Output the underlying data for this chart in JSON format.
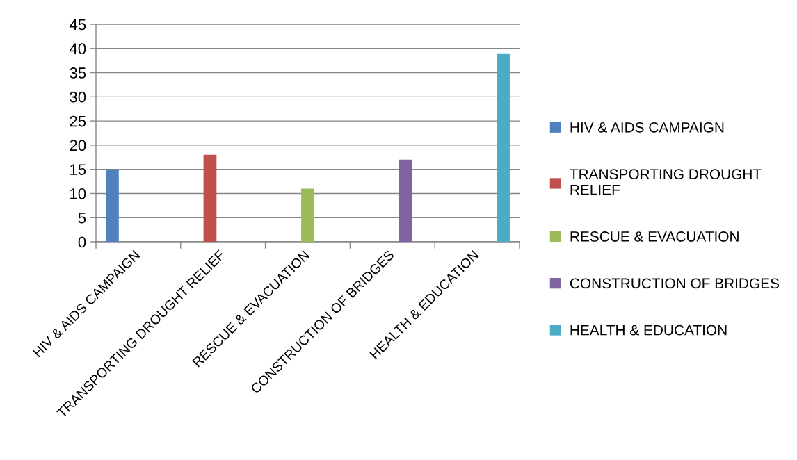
{
  "chart_data": {
    "type": "bar",
    "categories": [
      "HIV & AIDS CAMPAIGN",
      "TRANSPORTING DROUGHT RELIEF",
      "RESCUE & EVACUATION",
      "CONSTRUCTION OF BRIDGES",
      "HEALTH & EDUCATION"
    ],
    "series": [
      {
        "name": "HIV & AIDS CAMPAIGN",
        "color": "#4f81bd",
        "values": [
          15,
          null,
          null,
          null,
          null
        ]
      },
      {
        "name": "TRANSPORTING DROUGHT\nRELIEF",
        "color": "#c0504d",
        "values": [
          null,
          18,
          null,
          null,
          null
        ]
      },
      {
        "name": "RESCUE & EVACUATION",
        "color": "#9bbb59",
        "values": [
          null,
          null,
          11,
          null,
          null
        ]
      },
      {
        "name": "CONSTRUCTION OF BRIDGES",
        "color": "#8064a2",
        "values": [
          null,
          null,
          null,
          17,
          null
        ]
      },
      {
        "name": "HEALTH & EDUCATION",
        "color": "#4bacc6",
        "values": [
          null,
          null,
          null,
          null,
          39
        ]
      }
    ],
    "ylim": [
      0,
      45
    ],
    "yticks": [
      0,
      5,
      10,
      15,
      20,
      25,
      30,
      35,
      40,
      45
    ],
    "grid": "y",
    "legend": "right"
  }
}
